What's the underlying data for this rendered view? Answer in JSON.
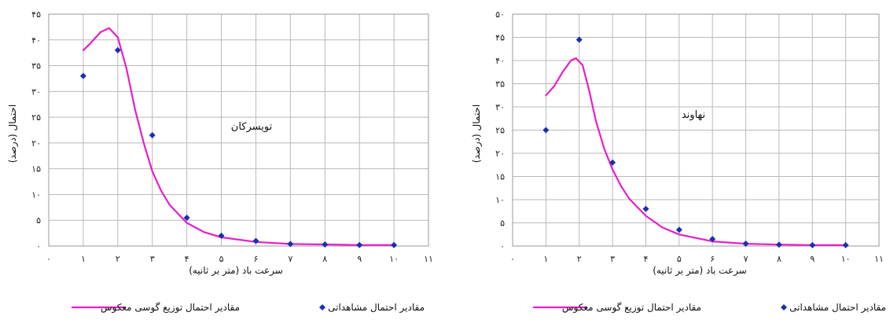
{
  "chart_data": [
    {
      "type": "line",
      "annotation": "تویسرکان",
      "xlabel": "سرعت باد (متر بر ثانیه)",
      "ylabel": "احتمال (درصد)",
      "xlim": [
        0,
        11
      ],
      "ylim": [
        0,
        45
      ],
      "x_ticks": [
        0,
        1,
        2,
        3,
        4,
        5,
        6,
        7,
        8,
        9,
        10,
        11
      ],
      "y_ticks": [
        0,
        5,
        10,
        15,
        20,
        25,
        30,
        35,
        40,
        45
      ],
      "x_tick_labels": [
        "۰",
        "۱",
        "۲",
        "۳",
        "۴",
        "۵",
        "۶",
        "۷",
        "۸",
        "۹",
        "۱۰",
        "۱۱"
      ],
      "y_tick_labels": [
        "۰",
        "۵",
        "۱۰",
        "۱۵",
        "۲۰",
        "۲۵",
        "۳۰",
        "۳۵",
        "۴۰",
        "۴۵"
      ],
      "grid": true,
      "legend_position": "bottom",
      "series": [
        {
          "name": "مقادیر احتمال مشاهداتی",
          "kind": "scatter",
          "color": "#1a2fb0",
          "x": [
            1,
            2,
            3,
            4,
            5,
            6,
            7,
            8,
            9,
            10
          ],
          "y": [
            33,
            38,
            21.5,
            5.5,
            2,
            1,
            0.4,
            0.3,
            0.2,
            0.2
          ]
        },
        {
          "name": "مقادیر احتمال توزیع گوسی معکوس",
          "kind": "line",
          "color": "#e81ec9",
          "x": [
            1,
            1.2,
            1.5,
            1.75,
            2,
            2.25,
            2.5,
            2.75,
            3,
            3.25,
            3.5,
            4,
            4.5,
            5,
            6,
            7,
            8,
            9,
            10
          ],
          "y": [
            38,
            39.3,
            41.5,
            42.3,
            40.5,
            34.5,
            26.5,
            20,
            14.5,
            10.8,
            8,
            4.5,
            2.7,
            1.7,
            0.8,
            0.4,
            0.3,
            0.2,
            0.2
          ]
        }
      ]
    },
    {
      "type": "line",
      "annotation": "نهاوند",
      "xlabel": "سرعت باد (متر بر ثانیه)",
      "ylabel": "احتمال (درصد)",
      "xlim": [
        0,
        11
      ],
      "ylim": [
        0,
        50
      ],
      "x_ticks": [
        0,
        1,
        2,
        3,
        4,
        5,
        6,
        7,
        8,
        9,
        10,
        11
      ],
      "y_ticks": [
        0,
        5,
        10,
        15,
        20,
        25,
        30,
        35,
        40,
        45,
        50
      ],
      "x_tick_labels": [
        "۰",
        "۱",
        "۲",
        "۳",
        "۴",
        "۵",
        "۶",
        "۷",
        "۸",
        "۹",
        "۱۰",
        "۱۱"
      ],
      "y_tick_labels": [
        "۰",
        "۵",
        "۱۰",
        "۱۵",
        "۲۰",
        "۲۵",
        "۳۰",
        "۳۵",
        "۴۰",
        "۴۵",
        "۵۰"
      ],
      "grid": true,
      "legend_position": "bottom",
      "series": [
        {
          "name": "مقادیر احتمال مشاهداتی",
          "kind": "scatter",
          "color": "#1a2fb0",
          "x": [
            1,
            2,
            3,
            4,
            5,
            6,
            7,
            8,
            9,
            10
          ],
          "y": [
            25,
            44.5,
            18,
            8,
            3.5,
            1.5,
            0.5,
            0.3,
            0.2,
            0.2
          ]
        },
        {
          "name": "مقادیر احتمال توزیع گوسی معکوس",
          "kind": "line",
          "color": "#e81ec9",
          "x": [
            1,
            1.25,
            1.5,
            1.75,
            1.9,
            2.1,
            2.3,
            2.5,
            2.75,
            3,
            3.25,
            3.5,
            4,
            4.5,
            5,
            6,
            7,
            8,
            9,
            10
          ],
          "y": [
            32.5,
            34.5,
            37.5,
            40,
            40.5,
            39,
            33.5,
            27,
            21,
            16.5,
            13,
            10.2,
            6.5,
            4,
            2.5,
            1,
            0.5,
            0.3,
            0.2,
            0.2
          ]
        }
      ]
    }
  ]
}
